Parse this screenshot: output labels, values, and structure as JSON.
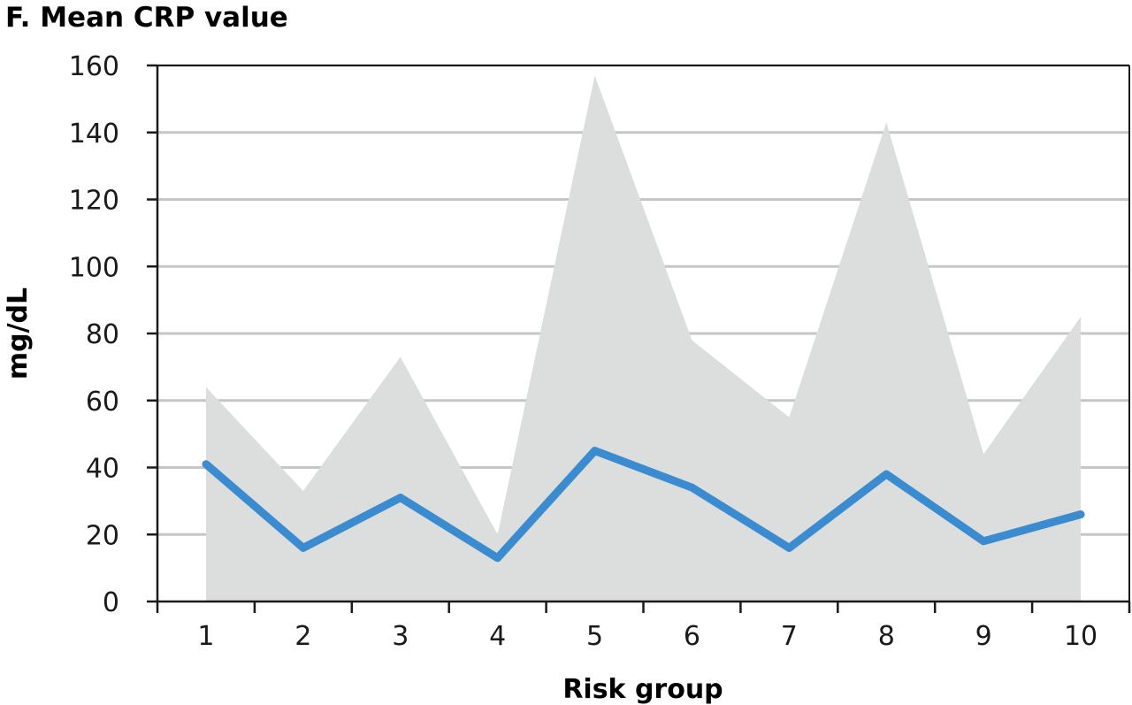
{
  "chart_data": {
    "type": "line",
    "title": "F. Mean CRP value",
    "xlabel": "Risk group",
    "ylabel": "mg/dL",
    "categories": [
      "1",
      "2",
      "3",
      "4",
      "5",
      "6",
      "7",
      "8",
      "9",
      "10"
    ],
    "ylim": [
      0,
      160
    ],
    "yticks": [
      "0",
      "20",
      "40",
      "60",
      "80",
      "100",
      "120",
      "140",
      "160"
    ],
    "grid": true,
    "series": [
      {
        "type": "area",
        "color": "#dcdddd",
        "values": [
          64,
          33,
          73,
          20,
          157,
          78,
          55,
          143,
          44,
          85
        ]
      },
      {
        "type": "line",
        "color": "#3a8bd0",
        "values": [
          41,
          16,
          31,
          13,
          45,
          34,
          16,
          38,
          18,
          26
        ]
      }
    ]
  }
}
